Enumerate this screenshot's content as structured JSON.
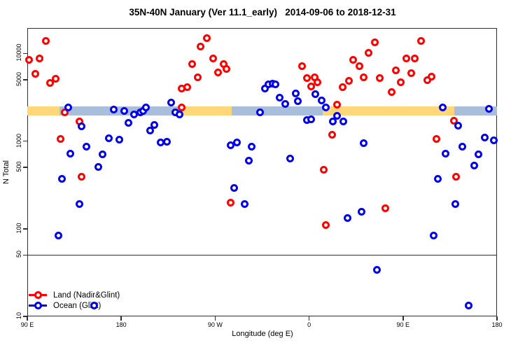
{
  "title": "35N-40N January (Ver 11.1_early)   2014-09-06 to 2018-12-31",
  "colors": {
    "land": "#ff0000",
    "ocean": "#0000ee",
    "band_warm": "#ffd678",
    "band_cool": "#a9bedb",
    "axis": "#2e2e2e",
    "background": "#ffffff"
  },
  "legend": {
    "entries": [
      {
        "label": "Land (Nadir&Glint)",
        "color": "#ff0000"
      },
      {
        "label": "Ocean (Glint)",
        "color": "#0000ee"
      }
    ]
  },
  "chart_data": {
    "type": "scatter",
    "title": "35N-40N January (Ver 11.1_early)   2014-09-06 to 2018-12-31",
    "x_axis": {
      "label": "Longitude (deg E)",
      "range": [
        90,
        540
      ],
      "ticks": [
        {
          "value": 90,
          "label": "90 E"
        },
        {
          "value": 180,
          "label": "180"
        },
        {
          "value": 270,
          "label": "90 W"
        },
        {
          "value": 360,
          "label": "0"
        },
        {
          "value": 450,
          "label": "90 E"
        },
        {
          "value": 540,
          "label": "180"
        }
      ]
    },
    "y_axis": {
      "label": "N Total",
      "scale": "log",
      "range": [
        10,
        19500
      ],
      "ticks": [
        10,
        50,
        100,
        500,
        1000,
        5000,
        10000
      ]
    },
    "reference_line_y": 50,
    "qc_band": {
      "n_from": 1950,
      "n_to": 2480,
      "segments": [
        {
          "from": 90,
          "to": 121,
          "color": "#ffd678"
        },
        {
          "from": 121,
          "to": 238,
          "color": "#a9bedb"
        },
        {
          "from": 238,
          "to": 286,
          "color": "#ffd678"
        },
        {
          "from": 286,
          "to": 373,
          "color": "#a9bedb"
        },
        {
          "from": 373,
          "to": 499,
          "color": "#ffd678"
        },
        {
          "from": 499,
          "to": 540,
          "color": "#a9bedb"
        }
      ]
    },
    "series": [
      {
        "name": "Land (Nadir&Glint)",
        "color": "#ff0000",
        "points": [
          [
            108,
            14000
          ],
          [
            92,
            8500
          ],
          [
            102,
            8800
          ],
          [
            98,
            5900
          ],
          [
            112,
            4600
          ],
          [
            117,
            5100
          ],
          [
            126,
            2140
          ],
          [
            140,
            1690
          ],
          [
            122,
            1060
          ],
          [
            142,
            390
          ],
          [
            238,
            4000
          ],
          [
            238,
            2430
          ],
          [
            262,
            15000
          ],
          [
            256,
            12000
          ],
          [
            268,
            8800
          ],
          [
            248,
            7600
          ],
          [
            278,
            7500
          ],
          [
            281,
            6700
          ],
          [
            273,
            6100
          ],
          [
            253,
            5300
          ],
          [
            243,
            4150
          ],
          [
            285,
            200
          ],
          [
            374,
            470
          ],
          [
            376,
            110
          ],
          [
            353,
            7200
          ],
          [
            358,
            5200
          ],
          [
            365,
            5300
          ],
          [
            368,
            4650
          ],
          [
            362,
            4230
          ],
          [
            387,
            2620
          ],
          [
            382,
            1190
          ],
          [
            392,
            4100
          ],
          [
            423,
            13400
          ],
          [
            467,
            14000
          ],
          [
            417,
            10200
          ],
          [
            402,
            8500
          ],
          [
            408,
            7100
          ],
          [
            453,
            8700
          ],
          [
            461,
            8800
          ],
          [
            443,
            6450
          ],
          [
            458,
            6000
          ],
          [
            412,
            5300
          ],
          [
            428,
            5200
          ],
          [
            398,
            4900
          ],
          [
            448,
            4700
          ],
          [
            477,
            5400
          ],
          [
            473,
            5000
          ],
          [
            439,
            3650
          ],
          [
            499,
            1720
          ],
          [
            482,
            1060
          ],
          [
            501,
            390
          ],
          [
            433,
            170
          ]
        ]
      },
      {
        "name": "Ocean (Glint)",
        "color": "#0000ee",
        "points": [
          [
            129,
            2400
          ],
          [
            142,
            1480
          ],
          [
            131,
            720
          ],
          [
            147,
            870
          ],
          [
            158,
            510
          ],
          [
            162,
            700
          ],
          [
            168,
            1080
          ],
          [
            178,
            1040
          ],
          [
            173,
            2300
          ],
          [
            183,
            2220
          ],
          [
            187,
            1620
          ],
          [
            192,
            2030
          ],
          [
            198,
            2140
          ],
          [
            201,
            2220
          ],
          [
            204,
            2400
          ],
          [
            208,
            1330
          ],
          [
            212,
            1540
          ],
          [
            218,
            970
          ],
          [
            224,
            990
          ],
          [
            228,
            2770
          ],
          [
            232,
            2140
          ],
          [
            236,
            2030
          ],
          [
            123,
            370
          ],
          [
            140,
            190
          ],
          [
            120,
            84
          ],
          [
            288,
            290
          ],
          [
            298,
            190
          ],
          [
            318,
            4000
          ],
          [
            321,
            4400
          ],
          [
            325,
            4500
          ],
          [
            328,
            4400
          ],
          [
            332,
            3150
          ],
          [
            337,
            2670
          ],
          [
            313,
            2140
          ],
          [
            347,
            3520
          ],
          [
            349,
            2870
          ],
          [
            358,
            1750
          ],
          [
            362,
            1780
          ],
          [
            366,
            3450
          ],
          [
            372,
            2920
          ],
          [
            376,
            2430
          ],
          [
            342,
            630
          ],
          [
            285,
            890
          ],
          [
            291,
            970
          ],
          [
            305,
            870
          ],
          [
            302,
            600
          ],
          [
            387,
            1950
          ],
          [
            383,
            1690
          ],
          [
            393,
            1690
          ],
          [
            488,
            2400
          ],
          [
            532,
            2350
          ],
          [
            503,
            1510
          ],
          [
            412,
            950
          ],
          [
            528,
            1100
          ],
          [
            537,
            1020
          ],
          [
            507,
            870
          ],
          [
            491,
            720
          ],
          [
            522,
            700
          ],
          [
            518,
            530
          ],
          [
            483,
            370
          ],
          [
            500,
            190
          ],
          [
            410,
            155
          ],
          [
            397,
            133
          ],
          [
            479,
            84
          ],
          [
            425,
            34
          ],
          [
            513,
            13.4
          ],
          [
            154,
            13.2
          ]
        ]
      }
    ]
  }
}
